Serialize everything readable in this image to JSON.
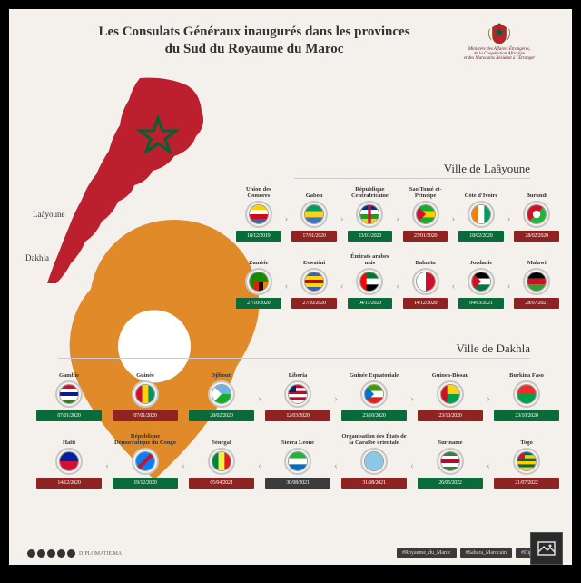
{
  "title_l1": "Les Consulats Généraux inaugurés dans les provinces",
  "title_l2": "du Sud du Royaume du Maroc",
  "crest_l1": "Ministère des Affaires Étrangères,",
  "crest_l2": "de la Coopération Africaine",
  "crest_l3": "et des Marocains Résidant à l'Étranger",
  "colors": {
    "morocco_red": "#bc1f2d",
    "morocco_green": "#006233",
    "bg": "#f4f1ec",
    "date_green": "#0a6b3a",
    "date_red": "#8f2322",
    "date_dark": "#3b3b3b",
    "pin": "#e08a2a"
  },
  "city_laayoune": "Laâyoune",
  "city_dakhla": "Dakhla",
  "section_laayoune": "Ville de Laâyoune",
  "section_dakhla": "Ville de Dakhla",
  "laayoune_r1": [
    {
      "name": "Union des Comores",
      "date": "18/12/2019",
      "dc": "#0a6b3a",
      "flag": {
        "t": "hband",
        "c": [
          "#ffd100",
          "#ffffff",
          "#cf0921",
          "#3b61a6"
        ]
      }
    },
    {
      "name": "Gabon",
      "date": "17/01/2020",
      "dc": "#8f2322",
      "flag": {
        "t": "hband",
        "c": [
          "#009e60",
          "#fcd116",
          "#3a75c4"
        ]
      }
    },
    {
      "name": "République Centrafricaine",
      "date": "23/01/2020",
      "dc": "#0a6b3a",
      "flag": {
        "t": "hband",
        "c": [
          "#003082",
          "#ffffff",
          "#289728",
          "#ffce00"
        ],
        "vstripe": "#d21034"
      }
    },
    {
      "name": "Sao Tomé et-Principe",
      "date": "23/01/2020",
      "dc": "#8f2322",
      "flag": {
        "t": "hband",
        "c": [
          "#12ad2b",
          "#ffce00",
          "#12ad2b"
        ],
        "tri": "#d21034"
      }
    },
    {
      "name": "Côte d'Ivoire",
      "date": "18/02/2020",
      "dc": "#0a6b3a",
      "flag": {
        "t": "vband",
        "c": [
          "#f77f00",
          "#ffffff",
          "#009e60"
        ]
      }
    },
    {
      "name": "Burundi",
      "date": "28/02/2020",
      "dc": "#8f2322",
      "flag": {
        "t": "diag",
        "c": [
          "#ce1126",
          "#1eb53a"
        ],
        "x": "#ffffff"
      }
    }
  ],
  "laayoune_r2": [
    {
      "name": "Zambie",
      "date": "27/10/2020",
      "dc": "#0a6b3a",
      "flag": {
        "t": "solid",
        "c": [
          "#198a00"
        ],
        "corner": [
          "#de2010",
          "#000000",
          "#ef7d00"
        ]
      }
    },
    {
      "name": "Eswatini",
      "date": "27/10/2020",
      "dc": "#8f2322",
      "flag": {
        "t": "hband",
        "c": [
          "#3e5eb9",
          "#ffd900",
          "#b10c0c",
          "#ffd900",
          "#3e5eb9"
        ]
      }
    },
    {
      "name": "Émirats arabes unis",
      "date": "04/11/2020",
      "dc": "#0a6b3a",
      "flag": {
        "t": "hband",
        "c": [
          "#00732f",
          "#ffffff",
          "#000000"
        ],
        "lstripe": "#ff0000"
      }
    },
    {
      "name": "Bahreïn",
      "date": "14/12/2020",
      "dc": "#8f2322",
      "flag": {
        "t": "vband",
        "c": [
          "#ffffff",
          "#ce1126"
        ]
      }
    },
    {
      "name": "Jordanie",
      "date": "04/03/2021",
      "dc": "#0a6b3a",
      "flag": {
        "t": "hband",
        "c": [
          "#000000",
          "#ffffff",
          "#007a3d"
        ],
        "tri": "#ce1126"
      }
    },
    {
      "name": "Malawi",
      "date": "28/07/2021",
      "dc": "#8f2322",
      "flag": {
        "t": "hband",
        "c": [
          "#000000",
          "#ce1126",
          "#339e35"
        ]
      }
    }
  ],
  "dakhla_r1": [
    {
      "name": "Gambie",
      "date": "07/01/2020",
      "dc": "#0a6b3a",
      "flag": {
        "t": "hband",
        "c": [
          "#ce1126",
          "#ffffff",
          "#0c1c8c",
          "#ffffff",
          "#3a7728"
        ]
      }
    },
    {
      "name": "Guinée",
      "date": "07/01/2020",
      "dc": "#8f2322",
      "flag": {
        "t": "vband",
        "c": [
          "#ce1126",
          "#fcd116",
          "#009460"
        ]
      }
    },
    {
      "name": "Djibouti",
      "date": "28/02/2020",
      "dc": "#0a6b3a",
      "flag": {
        "t": "hband",
        "c": [
          "#6ab2e7",
          "#12ad2b"
        ],
        "tri": "#ffffff"
      }
    },
    {
      "name": "Liberia",
      "date": "12/03/2020",
      "dc": "#8f2322",
      "flag": {
        "t": "hstripe",
        "c": [
          "#bf0a30",
          "#ffffff"
        ],
        "canton": "#002868"
      }
    },
    {
      "name": "Guinée Equatoriale",
      "date": "23/10/2020",
      "dc": "#0a6b3a",
      "flag": {
        "t": "hband",
        "c": [
          "#3e9a00",
          "#ffffff",
          "#e32118"
        ],
        "tri": "#0073ce"
      }
    },
    {
      "name": "Guinea-Bissau",
      "date": "23/10/2020",
      "dc": "#8f2322",
      "flag": {
        "t": "hband",
        "c": [
          "#fcd116",
          "#009e49"
        ],
        "lstripe": "#ce1126"
      }
    },
    {
      "name": "Burkina Faso",
      "date": "23/10/2020",
      "dc": "#0a6b3a",
      "flag": {
        "t": "hband",
        "c": [
          "#ef2b2d",
          "#009e49"
        ]
      }
    }
  ],
  "dakhla_r2": [
    {
      "name": "Haïti",
      "date": "14/12/2020",
      "dc": "#8f2322",
      "flag": {
        "t": "hband",
        "c": [
          "#00209f",
          "#d21034"
        ]
      }
    },
    {
      "name": "République Démocratique du Congo",
      "date": "19/12/2020",
      "dc": "#0a6b3a",
      "flag": {
        "t": "solid",
        "c": [
          "#007fff"
        ],
        "diag": "#ce1021",
        "#f7d618": "y"
      }
    },
    {
      "name": "Sénégal",
      "date": "05/04/2021",
      "dc": "#8f2322",
      "flag": {
        "t": "vband",
        "c": [
          "#00853f",
          "#fdef42",
          "#e31b23"
        ]
      }
    },
    {
      "name": "Sierra Leone",
      "date": "30/08/2021",
      "dc": "#3b3b3b",
      "flag": {
        "t": "hband",
        "c": [
          "#1eb53a",
          "#ffffff",
          "#0072c6"
        ]
      }
    },
    {
      "name": "Organisation des États de la Caraïbe orientale",
      "date": "31/08/2021",
      "dc": "#8f2322",
      "flag": {
        "t": "solid",
        "c": [
          "#8bc8e8"
        ]
      }
    },
    {
      "name": "Suriname",
      "date": "26/05/2022",
      "dc": "#0a6b3a",
      "flag": {
        "t": "hband",
        "c": [
          "#377e3f",
          "#ffffff",
          "#b40a2d",
          "#ffffff",
          "#377e3f"
        ]
      }
    },
    {
      "name": "Togo",
      "date": "21/07/2022",
      "dc": "#8f2322",
      "flag": {
        "t": "hstripe",
        "c": [
          "#006a4e",
          "#ffce00"
        ],
        "canton": "#d21034"
      }
    }
  ],
  "footer_handle": "DIPLOMATIE.MA",
  "hashtags": [
    "#Royaume_du_Maroc",
    "#Sahara_Marocain",
    "#Diplomatie"
  ]
}
